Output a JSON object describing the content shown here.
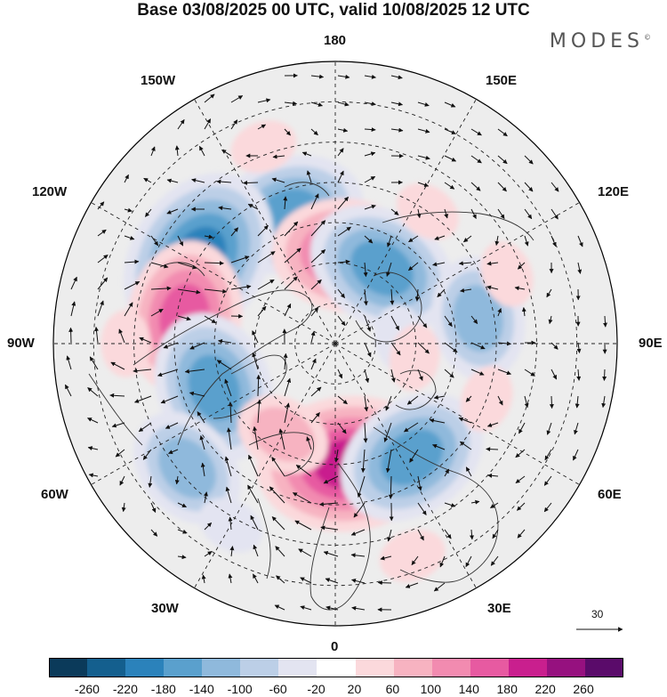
{
  "title": "Base 03/08/2025 00 UTC, valid 10/08/2025 12 UTC",
  "brand": "MODES",
  "brand_mark": "©",
  "longitude_labels": {
    "top": "180",
    "bottom": "0",
    "left": "90W",
    "right": "90E",
    "w150": "150W",
    "e150": "150E",
    "w120": "120W",
    "e120": "120E",
    "w60": "60W",
    "e60": "60E",
    "w30": "30W",
    "e30": "30E"
  },
  "reference_vector": "30",
  "colorbar": {
    "colors": [
      "#0b3a5a",
      "#145f8e",
      "#2b82bb",
      "#5aa0cd",
      "#8fb9dc",
      "#bccfe7",
      "#e3e4f1",
      "#ffffff",
      "#fbd9dc",
      "#f7b3c1",
      "#f28bb0",
      "#e75aa1",
      "#c91f8e",
      "#96117f",
      "#5a0b6a"
    ],
    "ticks": [
      "-260",
      "-220",
      "-180",
      "-140",
      "-100",
      "-60",
      "-20",
      "20",
      "60",
      "100",
      "140",
      "180",
      "220",
      "260"
    ]
  },
  "anomalies": [
    {
      "lon": 200,
      "colat": 34,
      "value": -180
    },
    {
      "lon": 172,
      "colat": 22,
      "value": 180
    },
    {
      "lon": 148,
      "colat": 22,
      "value": -160
    },
    {
      "lon": 100,
      "colat": 36,
      "value": -140
    },
    {
      "lon": 238,
      "colat": 40,
      "value": -200
    },
    {
      "lon": 260,
      "colat": 38,
      "value": 180
    },
    {
      "lon": 290,
      "colat": 32,
      "value": -160
    },
    {
      "lon": 310,
      "colat": 48,
      "value": -120
    },
    {
      "lon": 6,
      "colat": 30,
      "value": 200
    },
    {
      "lon": 34,
      "colat": 34,
      "value": -180
    },
    {
      "lon": 70,
      "colat": 40,
      "value": 60
    },
    {
      "lon": 112,
      "colat": 46,
      "value": 40
    },
    {
      "lon": 95,
      "colat": 16,
      "value": -60
    },
    {
      "lon": 200,
      "colat": 52,
      "value": 70
    },
    {
      "lon": 145,
      "colat": 40,
      "value": 40
    },
    {
      "lon": 270,
      "colat": 52,
      "value": 60
    },
    {
      "lon": 330,
      "colat": 26,
      "value": 80
    },
    {
      "lon": 330,
      "colat": 52,
      "value": -60
    },
    {
      "lon": 20,
      "colat": 56,
      "value": 60
    },
    {
      "lon": 80,
      "colat": 20,
      "value": 60
    }
  ]
}
